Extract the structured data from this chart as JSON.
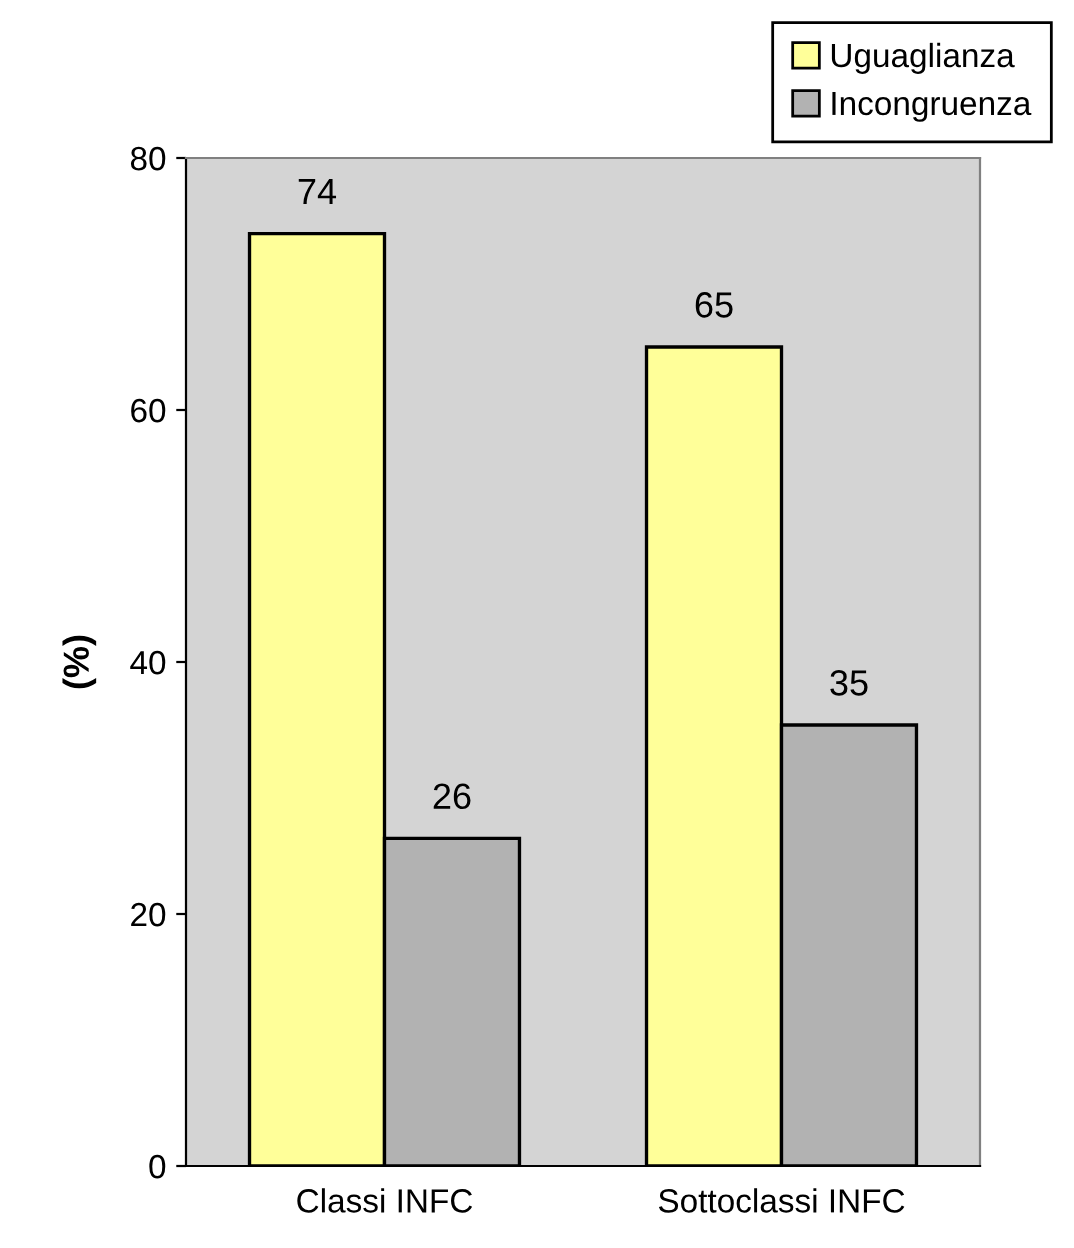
{
  "chart_data": {
    "type": "bar",
    "ylabel": "(%)",
    "categories": [
      "Classi INFC",
      "Sottoclassi INFC"
    ],
    "series": [
      {
        "name": "Uguaglianza",
        "color": "#ffff99",
        "values": [
          74,
          65
        ]
      },
      {
        "name": "Incongruenza",
        "color": "#b2b2b2",
        "values": [
          26,
          35
        ]
      }
    ],
    "ylim": [
      0,
      80
    ],
    "yticks": [
      0,
      20,
      40,
      60,
      80
    ],
    "grid": false,
    "legend": "top right",
    "data_labels": true
  }
}
